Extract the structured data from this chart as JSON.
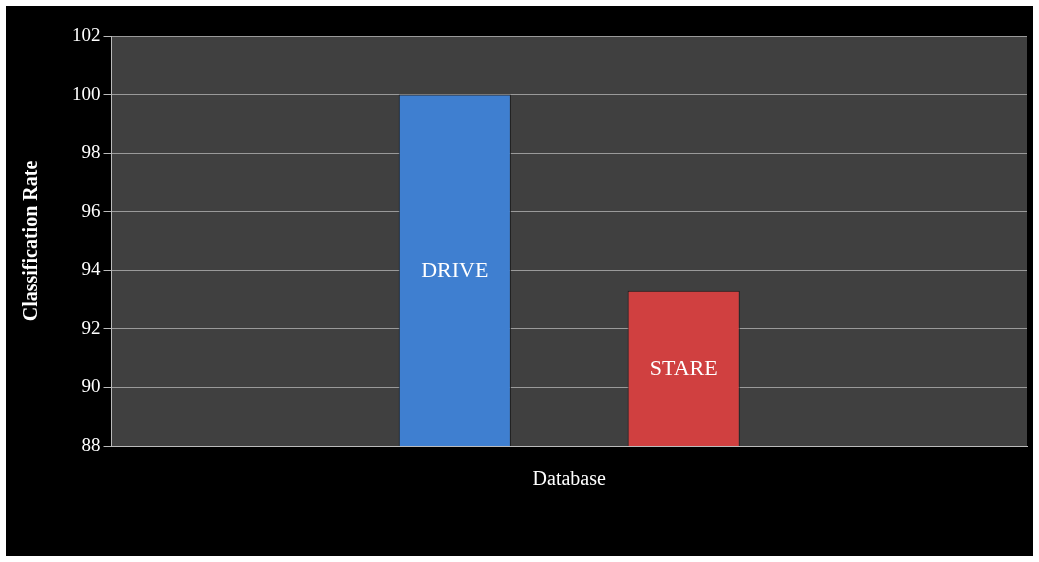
{
  "chart_data": {
    "type": "bar",
    "categories": [
      "Database"
    ],
    "ylabel": "Classification Rate",
    "series": [
      {
        "name": "DRIVE",
        "color": "#3f7fd0",
        "values": [
          100
        ]
      },
      {
        "name": "STARE",
        "color": "#d04040",
        "values": [
          93.3
        ]
      }
    ],
    "ylim": [
      88,
      102
    ],
    "yticks": [
      88,
      90,
      92,
      94,
      96,
      98,
      100,
      102
    ],
    "grid": "y",
    "legend": false
  }
}
